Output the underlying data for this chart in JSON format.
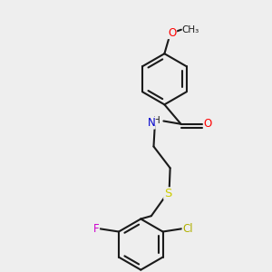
{
  "bg_color": "#eeeeee",
  "bond_color": "#1a1a1a",
  "bond_width": 1.5,
  "atom_colors": {
    "O": "#ff0000",
    "N": "#0000cc",
    "S": "#cccc00",
    "Cl": "#b0b000",
    "F": "#cc00cc",
    "C": "#1a1a1a"
  },
  "font_size": 8.5,
  "font_size_small": 7.5
}
